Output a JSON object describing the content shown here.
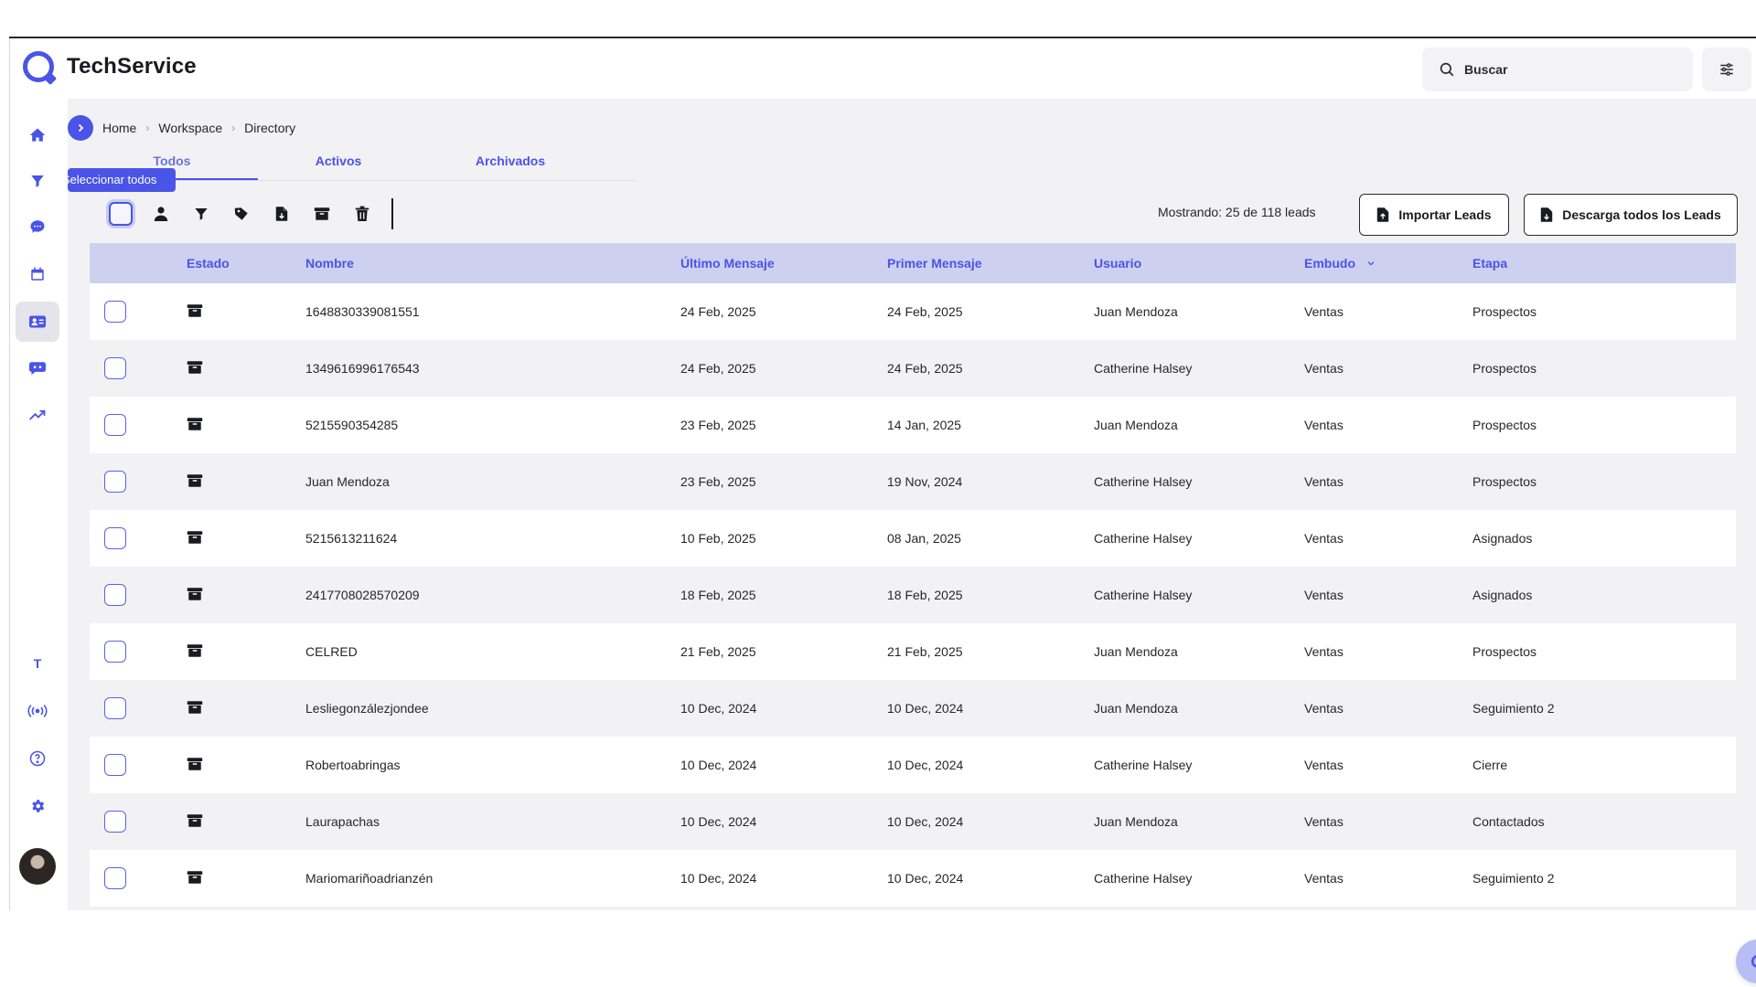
{
  "app": {
    "name": "TechService",
    "accent": "#4a54e6"
  },
  "header": {
    "search_placeholder": "Buscar"
  },
  "sidebar": {
    "top_icons": [
      "home-icon",
      "funnel-icon",
      "chat-icon",
      "calendar-icon",
      "contacts-icon",
      "bot-icon",
      "trending-icon"
    ],
    "bottom_icons": [
      "text-icon",
      "broadcast-icon",
      "help-icon",
      "settings-icon"
    ],
    "text_letter": "T"
  },
  "breadcrumb": [
    "Home",
    "Workspace",
    "Directory"
  ],
  "tabs": [
    {
      "label": "Todos",
      "active": true
    },
    {
      "label": "Activos",
      "active": false
    },
    {
      "label": "Archivados",
      "active": false
    }
  ],
  "tooltip": "Seleccionar todos",
  "toolbar": {
    "icons": [
      "user-icon",
      "funnel-icon",
      "tag-icon",
      "file-icon",
      "archive-icon",
      "trash-icon"
    ]
  },
  "summary": {
    "showing": "Mostrando: 25 de 118 leads"
  },
  "actions": {
    "import_label": "Importar Leads",
    "download_label": "Descarga todos los Leads"
  },
  "table": {
    "columns": [
      "Estado",
      "Nombre",
      "Último Mensaje",
      "Primer Mensaje",
      "Usuario",
      "Embudo",
      "Etapa"
    ],
    "rows": [
      {
        "nombre": "1648830339081551",
        "ultimo": "24 Feb, 2025",
        "primer": "24 Feb, 2025",
        "usuario": "Juan Mendoza",
        "embudo": "Ventas",
        "etapa": "Prospectos"
      },
      {
        "nombre": "1349616996176543",
        "ultimo": "24 Feb, 2025",
        "primer": "24 Feb, 2025",
        "usuario": "Catherine Halsey",
        "embudo": "Ventas",
        "etapa": "Prospectos"
      },
      {
        "nombre": "5215590354285",
        "ultimo": "23 Feb, 2025",
        "primer": "14 Jan, 2025",
        "usuario": "Juan Mendoza",
        "embudo": "Ventas",
        "etapa": "Prospectos"
      },
      {
        "nombre": "Juan Mendoza",
        "ultimo": "23 Feb, 2025",
        "primer": "19 Nov, 2024",
        "usuario": "Catherine Halsey",
        "embudo": "Ventas",
        "etapa": "Prospectos"
      },
      {
        "nombre": "5215613211624",
        "ultimo": "10 Feb, 2025",
        "primer": "08 Jan, 2025",
        "usuario": "Catherine Halsey",
        "embudo": "Ventas",
        "etapa": "Asignados"
      },
      {
        "nombre": "2417708028570209",
        "ultimo": "18 Feb, 2025",
        "primer": "18 Feb, 2025",
        "usuario": "Catherine Halsey",
        "embudo": "Ventas",
        "etapa": "Asignados"
      },
      {
        "nombre": "CELRED",
        "ultimo": "21 Feb, 2025",
        "primer": "21 Feb, 2025",
        "usuario": "Juan Mendoza",
        "embudo": "Ventas",
        "etapa": "Prospectos"
      },
      {
        "nombre": "Lesliegonzálezjondee",
        "ultimo": "10 Dec, 2024",
        "primer": "10 Dec, 2024",
        "usuario": "Juan Mendoza",
        "embudo": "Ventas",
        "etapa": "Seguimiento 2"
      },
      {
        "nombre": "Robertoabringas",
        "ultimo": "10 Dec, 2024",
        "primer": "10 Dec, 2024",
        "usuario": "Catherine Halsey",
        "embudo": "Ventas",
        "etapa": "Cierre"
      },
      {
        "nombre": "Laurapachas",
        "ultimo": "10 Dec, 2024",
        "primer": "10 Dec, 2024",
        "usuario": "Juan Mendoza",
        "embudo": "Ventas",
        "etapa": "Contactados"
      },
      {
        "nombre": "Mariomariñoadrianzén",
        "ultimo": "10 Dec, 2024",
        "primer": "10 Dec, 2024",
        "usuario": "Catherine Halsey",
        "embudo": "Ventas",
        "etapa": "Seguimiento 2"
      }
    ]
  }
}
